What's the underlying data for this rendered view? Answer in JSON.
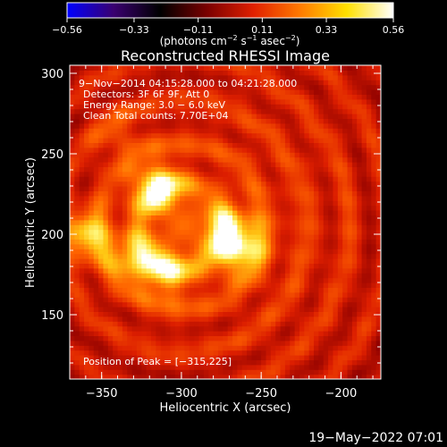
{
  "chart_data": {
    "type": "heatmap",
    "title": "Reconstructed RHESSI Image",
    "xlabel": "Heliocentric X (arcsec)",
    "ylabel": "Heliocentric Y (arcsec)",
    "xlim": [
      -370,
      -175
    ],
    "ylim": [
      110,
      305
    ],
    "x_ticks": [
      {
        "value": -350,
        "label": "−350"
      },
      {
        "value": -300,
        "label": "−300"
      },
      {
        "value": -250,
        "label": "−250"
      },
      {
        "value": -200,
        "label": "−200"
      }
    ],
    "y_ticks": [
      {
        "value": 150,
        "label": "150"
      },
      {
        "value": 200,
        "label": "200"
      },
      {
        "value": 250,
        "label": "250"
      },
      {
        "value": 300,
        "label": "300"
      }
    ],
    "colorbar": {
      "min": -0.56,
      "max": 0.56,
      "ticks": [
        {
          "value": -0.56,
          "label": "−0.56"
        },
        {
          "value": -0.33,
          "label": "−0.33"
        },
        {
          "value": -0.11,
          "label": "−0.11"
        },
        {
          "value": 0.11,
          "label": "0.11"
        },
        {
          "value": 0.33,
          "label": "0.33"
        },
        {
          "value": 0.56,
          "label": "0.56"
        }
      ],
      "unit_parts": {
        "p1": "(photons cm",
        "s1": "−2",
        "p2": " s",
        "s2": "−1",
        "p3": " asec",
        "s3": "−2",
        "p4": ")"
      },
      "colormap": [
        "#0000ff",
        "#3a0070",
        "#000000",
        "#7a0000",
        "#e02000",
        "#ff7a00",
        "#ffe000",
        "#ffffff"
      ]
    },
    "info": [
      "9−Nov−2014 04:15:28.000 to 04:21:28.000",
      "Detectors: 3F 6F 9F, Att 0",
      "Energy Range: 3.0 − 6.0 keV",
      "Clean     Total counts: 7.70E+04"
    ],
    "peak_text": "Position of Peak = [−315,225]",
    "sources": [
      {
        "x": -315,
        "y": 228,
        "peak": 1.0
      },
      {
        "x": -265,
        "y": 192,
        "peak": 0.85
      },
      {
        "x": -330,
        "y": 186,
        "peak": 0.72
      },
      {
        "x": -308,
        "y": 176,
        "peak": 0.7
      },
      {
        "x": -362,
        "y": 200,
        "peak": 0.78
      },
      {
        "x": -275,
        "y": 205,
        "peak": 0.5
      },
      {
        "x": -340,
        "y": 262,
        "peak": 0.28
      }
    ],
    "background_level": 0.55,
    "speckle_texture": "ripple",
    "timestamp": "19−May−2022 07:01"
  }
}
